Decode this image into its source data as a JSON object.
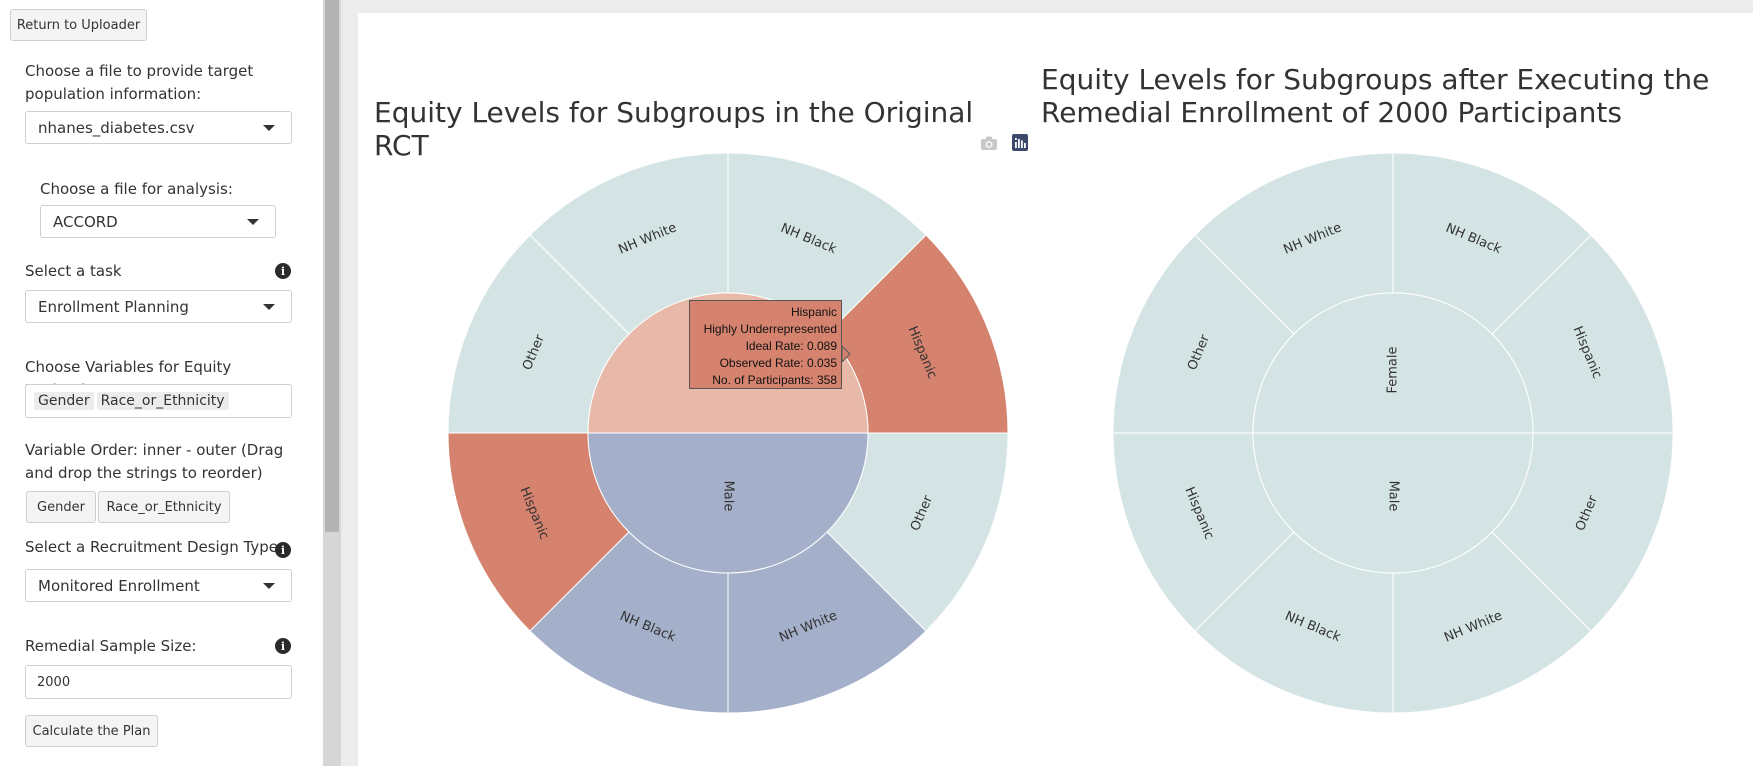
{
  "sidebar": {
    "return_button": "Return to Uploader",
    "target_file_label": "Choose a file to provide target population information:",
    "target_file_value": "nhanes_diabetes.csv",
    "analysis_file_label": "Choose a file for analysis:",
    "analysis_file_value": "ACCORD",
    "task_label": "Select a task",
    "task_value": "Enrollment Planning",
    "variables_label": "Choose Variables for Equity Evaluation",
    "variables_selected": [
      "Gender",
      "Race_or_Ethnicity"
    ],
    "order_label": "Variable Order: inner - outer (Drag and drop the strings to reorder)",
    "order_items": [
      "Gender",
      "Race_or_Ethnicity"
    ],
    "design_label": "Select a Recruitment Design Type",
    "design_value": "Monitored Enrollment",
    "sample_size_label": "Remedial Sample Size:",
    "sample_size_value": "2000",
    "calculate_button": "Calculate the Plan",
    "info_icon_glyph": "i"
  },
  "toolbar": {
    "camera_icon": "camera-icon",
    "plotly_icon": "plotly-logo-icon"
  },
  "colors": {
    "highly_underrepresented": "#d5836f",
    "underrepresented": "#e8b8a8",
    "overrepresented": "#a4afc9",
    "equitable": "#d4e4e4"
  },
  "chart_data": [
    {
      "type": "sunburst",
      "title": "Equity Levels for Subgroups in the Original RCT",
      "inner": [
        {
          "label": "",
          "status": "underrepresented"
        },
        {
          "label": "Male",
          "status": "overrepresented"
        }
      ],
      "outer": [
        {
          "parent": 0,
          "label": "Hispanic",
          "status": "highly_underrepresented"
        },
        {
          "parent": 0,
          "label": "NH Black",
          "status": "equitable"
        },
        {
          "parent": 0,
          "label": "NH White",
          "status": "equitable"
        },
        {
          "parent": 0,
          "label": "Other",
          "status": "equitable"
        },
        {
          "parent": 1,
          "label": "Hispanic",
          "status": "highly_underrepresented"
        },
        {
          "parent": 1,
          "label": "NH Black",
          "status": "overrepresented"
        },
        {
          "parent": 1,
          "label": "NH White",
          "status": "overrepresented"
        },
        {
          "parent": 1,
          "label": "Other",
          "status": "equitable"
        }
      ],
      "tooltip": {
        "subgroup": "Hispanic",
        "level": "Highly Underrepresented",
        "ideal_rate": "Ideal Rate: 0.089",
        "observed_rate": "Observed Rate: 0.035",
        "participants": "No. of Participants: 358"
      }
    },
    {
      "type": "sunburst",
      "title_line1": "Equity Levels for Subgroups after Executing the",
      "title_line2": "Remedial Enrollment of 2000 Participants",
      "inner": [
        {
          "label": "Female",
          "status": "equitable"
        },
        {
          "label": "Male",
          "status": "equitable"
        }
      ],
      "outer": [
        {
          "parent": 0,
          "label": "Hispanic",
          "status": "equitable"
        },
        {
          "parent": 0,
          "label": "NH Black",
          "status": "equitable"
        },
        {
          "parent": 0,
          "label": "NH White",
          "status": "equitable"
        },
        {
          "parent": 0,
          "label": "Other",
          "status": "equitable"
        },
        {
          "parent": 1,
          "label": "Hispanic",
          "status": "equitable"
        },
        {
          "parent": 1,
          "label": "NH Black",
          "status": "equitable"
        },
        {
          "parent": 1,
          "label": "NH White",
          "status": "equitable"
        },
        {
          "parent": 1,
          "label": "Other",
          "status": "equitable"
        }
      ]
    }
  ]
}
